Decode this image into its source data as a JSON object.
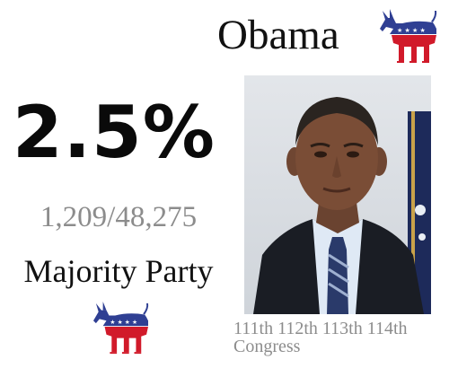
{
  "name": "Obama",
  "percent": "2.5%",
  "ratio": "1,209/48,275",
  "party_status": "Majority Party",
  "congress": [
    "111th",
    "112th",
    "113th",
    "114th"
  ],
  "congress_label": "Congress",
  "icons": {
    "party_logo": "democratic-donkey-icon",
    "portrait": "official-portrait-image"
  },
  "colors": {
    "donkey_blue": "#2f3f93",
    "donkey_red": "#d11a2a"
  }
}
